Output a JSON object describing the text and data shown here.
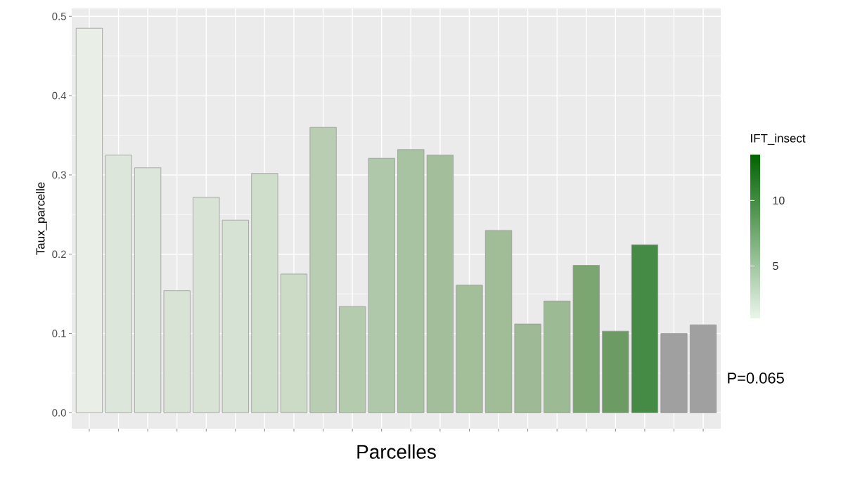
{
  "chart_data": {
    "type": "bar",
    "xlabel": "Parcelles",
    "ylabel": "Taux_parcelle",
    "clabel": "IFT_insect",
    "categories": [
      null,
      null,
      null,
      null,
      null,
      null,
      null,
      null,
      null,
      null,
      null,
      null,
      null,
      null,
      null,
      null,
      null,
      null,
      null,
      null,
      null,
      null
    ],
    "values": [
      0.485,
      0.325,
      0.309,
      0.154,
      0.272,
      0.243,
      0.302,
      0.175,
      0.36,
      0.134,
      0.321,
      0.332,
      0.325,
      0.161,
      0.23,
      0.112,
      0.141,
      0.186,
      0.103,
      0.212,
      0.1,
      0.111
    ],
    "colors": [
      "#e9efe6",
      "#dde6da",
      "#dde6da",
      "#d8e3d5",
      "#d8e3d5",
      "#d6e2d3",
      "#cfdecb",
      "#cbdbc6",
      "#b8cdb2",
      "#b4cbae",
      "#b0c8aa",
      "#a8c3a1",
      "#a3be9b",
      "#a2bf9a",
      "#a0bd98",
      "#9db995",
      "#9cba93",
      "#7ba672",
      "#6c9c63",
      "#468b45",
      "#a0a0a0",
      "#a0a0a0"
    ],
    "ylim": [
      -0.02,
      0.51
    ],
    "yticks": [
      {
        "value": 0,
        "label": "0.0"
      },
      0.1,
      0.2,
      0.3,
      0.4,
      0.5
    ],
    "clim": [
      1,
      13.5
    ],
    "cticks": [
      5,
      10
    ],
    "grid": true,
    "annotations": [
      "P=0.065"
    ]
  }
}
